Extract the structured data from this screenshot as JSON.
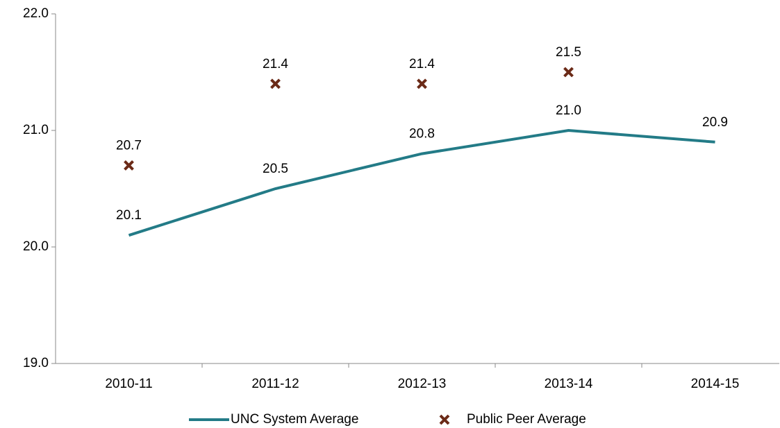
{
  "chart_data": {
    "type": "line",
    "categories": [
      "2010-11",
      "2011-12",
      "2012-13",
      "2013-14",
      "2014-15"
    ],
    "series": [
      {
        "name": "UNC System Average",
        "color": "#237b87",
        "style": "line",
        "values": [
          20.1,
          20.5,
          20.8,
          21.0,
          20.9
        ],
        "value_labels": [
          "20.1",
          "20.5",
          "20.8",
          "21.0",
          "20.9"
        ]
      },
      {
        "name": "Public Peer Average",
        "color": "#6b2a17",
        "style": "marker",
        "values": [
          20.7,
          21.4,
          21.4,
          21.5,
          null
        ],
        "value_labels": [
          "20.7",
          "21.4",
          "21.4",
          "21.5",
          null
        ]
      }
    ],
    "ylim": [
      19,
      22
    ],
    "yticks": [
      {
        "value": 19,
        "label": "19.0"
      },
      {
        "value": 20,
        "label": "20.0"
      },
      {
        "value": 21,
        "label": "21.0"
      },
      {
        "value": 22,
        "label": "22.0"
      }
    ],
    "grid": false,
    "legend": "bottom"
  }
}
